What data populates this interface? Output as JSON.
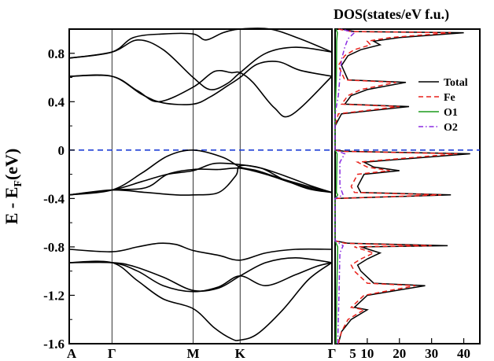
{
  "chart_data": [
    {
      "type": "line",
      "panel": "band-structure",
      "title": "",
      "xlabel": "",
      "ylabel": "E - E",
      "ylabel_sub": "F",
      "ylabel_unit": "(eV)",
      "ylim": [
        -1.6,
        1.0
      ],
      "yticks": [
        -1.6,
        -1.2,
        -0.8,
        -0.4,
        0,
        0.4,
        0.8
      ],
      "ytick_labels": [
        "-1.6",
        "-1.2",
        "-0.8",
        "-0.4",
        "0",
        "0.4",
        "0.8"
      ],
      "k_points": [
        {
          "label": "A",
          "k": 0.0
        },
        {
          "label": "Γ",
          "k": 1.0
        },
        {
          "label": "M",
          "k": 2.9
        },
        {
          "label": "K",
          "k": 4.0
        },
        {
          "label": "Γ",
          "k": 6.15
        }
      ],
      "fermi_level": 0,
      "bands": [
        {
          "k": [
            0,
            1,
            1.5,
            2.2,
            2.9,
            3.2,
            3.6,
            4.0,
            4.7,
            5.4,
            6.15
          ],
          "E": [
            0.76,
            0.81,
            0.93,
            0.96,
            0.96,
            0.91,
            0.97,
            1.0,
            1.0,
            0.92,
            0.81
          ]
        },
        {
          "k": [
            0,
            1,
            1.6,
            2.2,
            2.9,
            3.3,
            3.7,
            4.0,
            4.6,
            5.3,
            6.15
          ],
          "E": [
            0.76,
            0.81,
            0.91,
            0.83,
            0.6,
            0.5,
            0.55,
            0.64,
            0.8,
            0.85,
            0.81
          ]
        },
        {
          "k": [
            0,
            1,
            1.7,
            2.2,
            2.9,
            3.3,
            3.7,
            4.0,
            4.4,
            4.9,
            5.4,
            6.15
          ],
          "E": [
            0.61,
            0.61,
            0.46,
            0.39,
            0.38,
            0.44,
            0.53,
            0.6,
            0.71,
            0.73,
            0.66,
            0.61
          ]
        },
        {
          "k": [
            0,
            1,
            1.6,
            2.1,
            2.9,
            3.4,
            3.8,
            4.0,
            4.3,
            4.8,
            5.2,
            6.15
          ],
          "E": [
            0.61,
            0.61,
            0.49,
            0.4,
            0.52,
            0.65,
            0.64,
            0.64,
            0.56,
            0.35,
            0.29,
            0.61
          ]
        },
        {
          "k": [
            0,
            1,
            1.7,
            2.3,
            2.9,
            3.6,
            4.0,
            4.4,
            5.0,
            5.6,
            6.15
          ],
          "E": [
            -0.37,
            -0.33,
            -0.19,
            -0.05,
            0.0,
            -0.06,
            -0.14,
            -0.17,
            -0.24,
            -0.3,
            -0.35
          ]
        },
        {
          "k": [
            0,
            1,
            1.7,
            2.3,
            2.9,
            3.4,
            4.0,
            4.5,
            5.1,
            5.7,
            6.15
          ],
          "E": [
            -0.37,
            -0.33,
            -0.26,
            -0.2,
            -0.17,
            -0.11,
            -0.12,
            -0.15,
            -0.22,
            -0.3,
            -0.35
          ]
        },
        {
          "k": [
            0,
            1,
            1.8,
            2.3,
            2.9,
            3.5,
            4.0,
            4.6,
            5.2,
            5.7,
            6.15
          ],
          "E": [
            -0.37,
            -0.33,
            -0.31,
            -0.2,
            -0.16,
            -0.16,
            -0.15,
            -0.2,
            -0.27,
            -0.32,
            -0.35
          ]
        },
        {
          "k": [
            0,
            1,
            1.8,
            2.5,
            2.9,
            3.5,
            3.9,
            4.0,
            4.5,
            5.0,
            5.6,
            6.15
          ],
          "E": [
            -0.37,
            -0.33,
            -0.35,
            -0.37,
            -0.37,
            -0.35,
            -0.21,
            -0.13,
            -0.15,
            -0.24,
            -0.32,
            -0.35
          ]
        },
        {
          "k": [
            0,
            1,
            1.6,
            2.1,
            2.5,
            2.9,
            3.5,
            4.0,
            4.6,
            5.3,
            6.15
          ],
          "E": [
            -0.82,
            -0.84,
            -0.8,
            -0.77,
            -0.78,
            -0.83,
            -0.87,
            -0.91,
            -0.85,
            -0.82,
            -0.82
          ]
        },
        {
          "k": [
            0,
            1,
            1.5,
            2.2,
            2.9,
            3.5,
            4.0,
            4.6,
            5.3,
            6.15
          ],
          "E": [
            -0.93,
            -0.93,
            -0.96,
            -1.05,
            -1.16,
            -1.14,
            -1.04,
            -0.93,
            -0.89,
            -0.93
          ]
        },
        {
          "k": [
            0,
            1,
            1.6,
            2.2,
            2.9,
            3.5,
            4.0,
            4.6,
            5.3,
            5.8,
            6.15
          ],
          "E": [
            -0.93,
            -0.93,
            -1.0,
            -1.12,
            -1.17,
            -1.13,
            -1.04,
            -1.12,
            -1.03,
            -0.96,
            -0.93
          ]
        },
        {
          "k": [
            0,
            1,
            1.6,
            2.2,
            2.9,
            3.4,
            3.8,
            4.0,
            4.4,
            5.0,
            5.6,
            6.15
          ],
          "E": [
            -0.93,
            -0.93,
            -1.08,
            -1.23,
            -1.31,
            -1.47,
            -1.56,
            -1.57,
            -1.52,
            -1.32,
            -1.07,
            -0.93
          ]
        }
      ]
    },
    {
      "type": "line",
      "panel": "dos",
      "title": "DOS(states/eV f.u.)",
      "xlabel": "",
      "ylabel": "",
      "xlim": [
        0,
        45
      ],
      "xticks": [
        10,
        20,
        30,
        40
      ],
      "xtick_labels": [
        "10",
        "20",
        "30",
        "40"
      ],
      "extra_tick_label": "5",
      "ylim": [
        -1.6,
        1.0
      ],
      "legend_position": "right",
      "series": [
        {
          "name": "Total",
          "color": "#000000",
          "dash": "solid",
          "E": [
            -1.6,
            -1.5,
            -1.4,
            -1.32,
            -1.3,
            -1.2,
            -1.12,
            -1.1,
            -1.0,
            -0.95,
            -0.9,
            -0.85,
            -0.8,
            -0.79,
            -0.77,
            -0.75,
            -0.6,
            -0.4,
            -0.37,
            -0.35,
            -0.3,
            -0.2,
            -0.17,
            -0.14,
            -0.1,
            -0.03,
            -0.01,
            0.0,
            0.2,
            0.3,
            0.36,
            0.38,
            0.45,
            0.5,
            0.56,
            0.58,
            0.7,
            0.78,
            0.83,
            0.87,
            0.9,
            0.93,
            0.97,
            0.98,
            1.0
          ],
          "D": [
            1,
            2,
            5,
            10,
            6,
            10,
            28,
            12,
            8,
            7,
            10,
            14,
            8,
            35,
            4,
            0,
            0,
            0,
            36,
            8,
            7,
            9,
            20,
            12,
            9,
            42,
            3,
            0,
            0,
            2,
            23,
            3,
            5,
            10,
            22,
            4,
            2,
            4,
            8,
            14,
            12,
            20,
            40,
            6,
            2
          ]
        },
        {
          "name": "Fe",
          "color": "#e8201a",
          "dash": "6,4",
          "E": [
            -1.6,
            -1.5,
            -1.4,
            -1.32,
            -1.3,
            -1.2,
            -1.12,
            -1.1,
            -1.0,
            -0.95,
            -0.9,
            -0.85,
            -0.8,
            -0.79,
            -0.77,
            -0.75,
            -0.6,
            -0.4,
            -0.37,
            -0.35,
            -0.3,
            -0.2,
            -0.17,
            -0.14,
            -0.1,
            -0.03,
            -0.01,
            0.0,
            0.2,
            0.3,
            0.36,
            0.38,
            0.45,
            0.5,
            0.56,
            0.58,
            0.7,
            0.78,
            0.83,
            0.87,
            0.9,
            0.93,
            0.97,
            0.98,
            1.0
          ],
          "D": [
            1,
            2,
            4,
            9,
            5,
            9,
            25,
            10,
            6,
            5,
            8,
            12,
            6,
            30,
            3,
            0,
            0,
            0,
            33,
            6,
            5,
            7,
            17,
            10,
            7,
            38,
            2,
            0,
            0,
            1,
            20,
            2,
            4,
            8,
            19,
            3,
            1,
            3,
            6,
            11,
            10,
            17,
            36,
            5,
            1
          ]
        },
        {
          "name": "O1",
          "color": "#1c9a1c",
          "dash": "solid",
          "E": [
            -1.6,
            -1.2,
            -0.8,
            -0.75,
            -0.4,
            -0.37,
            -0.35,
            -0.03,
            0.0,
            0.3,
            0.6,
            0.9,
            0.97,
            1.0
          ],
          "D": [
            0.3,
            0.5,
            0.8,
            0,
            0,
            0.8,
            0.4,
            0.6,
            0,
            0,
            0.4,
            0.5,
            0.7,
            0.3
          ]
        },
        {
          "name": "O2",
          "color": "#8a2be2",
          "dash": "6,3,1.5,3",
          "E": [
            -1.6,
            -1.2,
            -0.85,
            -0.79,
            -0.75,
            -0.4,
            -0.37,
            -0.3,
            -0.1,
            -0.03,
            0.0,
            0.3,
            0.45,
            0.6,
            0.75,
            0.85,
            0.92,
            0.97,
            1.0
          ],
          "D": [
            0.8,
            1.2,
            1.5,
            2.5,
            0,
            0,
            2.5,
            1.5,
            1.5,
            3,
            0,
            0,
            1,
            1.5,
            2,
            3,
            4,
            6,
            2
          ]
        }
      ]
    }
  ]
}
